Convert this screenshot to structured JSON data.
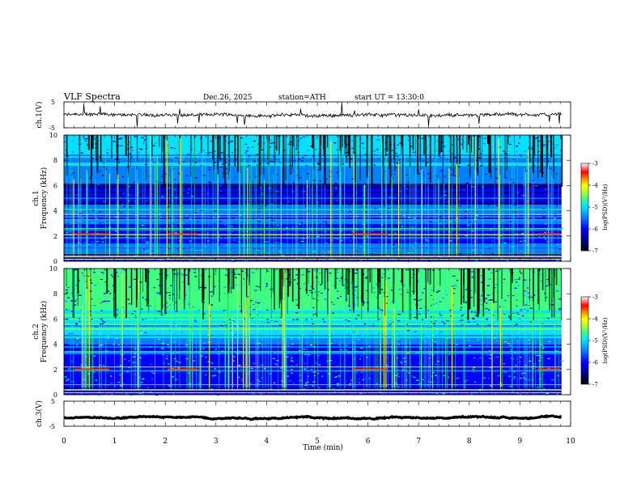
{
  "header": {
    "title": "VLF  Spectra",
    "date": "Dec.26, 2025",
    "station": "station=ATH",
    "start": "start  UT  =   13:30:0"
  },
  "chart_data": [
    {
      "name": "ch1-waveform",
      "type": "line",
      "ylabel": "ch.1(V)",
      "ylim": [
        -5,
        5
      ],
      "y_ticks": [
        "5",
        "-5"
      ],
      "xlim": [
        0,
        10
      ],
      "series": [
        {
          "name": "ch.1",
          "baseline": 0,
          "noise_amplitude": 1.2
        }
      ]
    },
    {
      "name": "ch1-spectrogram",
      "type": "heatmap",
      "ylabel": "ch.1\nFrequency (kHz)",
      "ylabel_channel": "ch.1",
      "ylabel_freq": "Frequency (kHz)",
      "ylim": [
        0,
        10
      ],
      "y_ticks": [
        "0",
        "2",
        "4",
        "6",
        "8",
        "10"
      ],
      "xlim": [
        0,
        10
      ],
      "colorbar": {
        "label": "log(PSD)(V²/Hz)",
        "range": [
          -7,
          -3
        ],
        "ticks": [
          "-3",
          "-4",
          "-5",
          "-6",
          "-7"
        ]
      },
      "lines_khz": [
        0.3,
        0.7,
        1.1,
        2.1,
        2.6,
        3.3,
        3.7,
        4.1,
        5.0
      ]
    },
    {
      "name": "ch2-spectrogram",
      "type": "heatmap",
      "ylabel": "ch.2\nFrequency (kHz)",
      "ylabel_channel": "ch.2",
      "ylabel_freq": "Frequency (kHz)",
      "ylim": [
        0,
        10
      ],
      "y_ticks": [
        "0",
        "2",
        "4",
        "6",
        "8",
        "10"
      ],
      "xlim": [
        0,
        10
      ],
      "colorbar": {
        "label": "log(PSD)(V²/Hz)",
        "range": [
          -7,
          -3
        ],
        "ticks": [
          "-3",
          "-4",
          "-5",
          "-6",
          "-7"
        ]
      },
      "lines_khz": [
        0.3,
        0.8,
        1.9,
        2.2,
        3.4,
        4.6,
        5.2
      ]
    },
    {
      "name": "ch3-waveform",
      "type": "line",
      "ylabel": "ch.3(V)",
      "ylim": [
        -5,
        5
      ],
      "y_ticks": [
        "5",
        "-5"
      ],
      "xlim": [
        0,
        10
      ],
      "series": [
        {
          "name": "ch.3",
          "baseline": -1.5,
          "noise_amplitude": 0.3
        }
      ]
    }
  ],
  "x_axis": {
    "label": "Time  (min)",
    "ticks": [
      "0",
      "1",
      "2",
      "3",
      "4",
      "5",
      "6",
      "7",
      "8",
      "9",
      "10"
    ],
    "data_end": 9.82
  },
  "colors": {
    "colormap": [
      "#000000",
      "#00008a",
      "#0000ff",
      "#0080ff",
      "#00e0ff",
      "#40ff80",
      "#c0ff20",
      "#ffff00",
      "#ff8000",
      "#ff0000",
      "#ffffff"
    ]
  }
}
